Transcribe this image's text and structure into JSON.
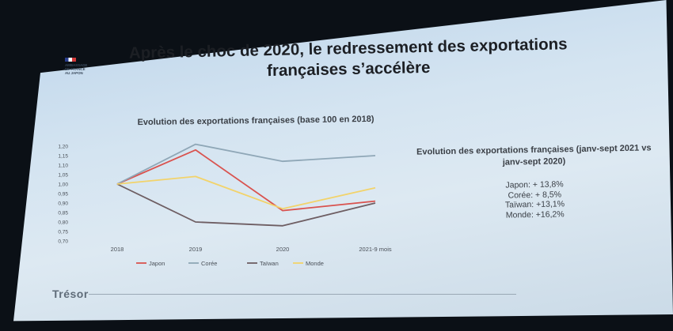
{
  "slide": {
    "title": "Après le choc de 2020, le redressement des exportations françaises s’accélère",
    "logo_lines": [
      "AMBASSADE",
      "DE FRANCE",
      "AU JAPON"
    ],
    "footer_logo": "Trésor"
  },
  "side_panel": {
    "title": "Evolution des exportations françaises (janv-sept 2021 vs janv-sept 2020)",
    "items": [
      "Japon: + 13,8%",
      "Corée: + 8,5%",
      "Taïwan: +13,1%",
      "Monde: +16,2%"
    ]
  },
  "chart_data": {
    "type": "line",
    "title": "Evolution des exportations françaises (base 100 en 2018)",
    "categories": [
      "2018",
      "2019",
      "2020",
      "2021-9 mois"
    ],
    "ylim": [
      0.7,
      1.2
    ],
    "yticks": [
      "1,20",
      "1,15",
      "1,10",
      "1,05",
      "1,00",
      "0,95",
      "0,90",
      "0,85",
      "0,80",
      "0,75",
      "0,70"
    ],
    "ytick_values": [
      1.2,
      1.15,
      1.1,
      1.05,
      1.0,
      0.95,
      0.9,
      0.85,
      0.8,
      0.75,
      0.7
    ],
    "grid": false,
    "legend_position": "bottom",
    "series": [
      {
        "name": "Japon",
        "color": "#d9534f",
        "values": [
          1.0,
          1.18,
          0.86,
          0.91
        ]
      },
      {
        "name": "Corée",
        "color": "#8fa7b7",
        "values": [
          1.0,
          1.21,
          1.12,
          1.15
        ]
      },
      {
        "name": "Taïwan",
        "color": "#6e5e63",
        "values": [
          1.0,
          0.8,
          0.78,
          0.9
        ]
      },
      {
        "name": "Monde",
        "color": "#f2d36b",
        "values": [
          1.0,
          1.04,
          0.87,
          0.98
        ]
      }
    ]
  }
}
